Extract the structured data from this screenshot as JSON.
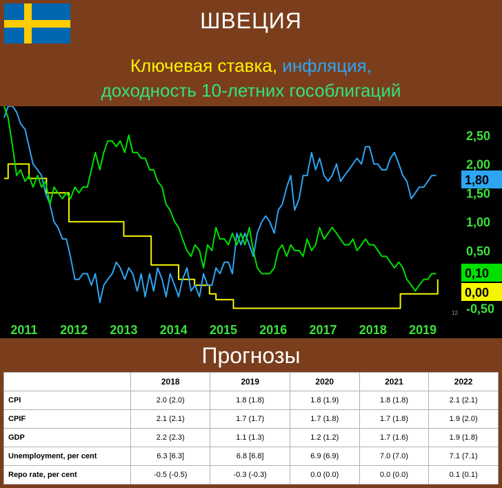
{
  "header": {
    "country": "ШВЕЦИЯ",
    "title_parts": [
      {
        "text": "Ключевая ставка,",
        "color": "#fff200"
      },
      {
        "text": " инфляция,",
        "color": "#2fa5f2"
      }
    ],
    "title_line2": "доходность 10-летних гособлигаций"
  },
  "chart_data": {
    "type": "line",
    "x_tick_labels": [
      "2011",
      "2012",
      "2013",
      "2014",
      "2015",
      "2016",
      "2017",
      "2018",
      "2019"
    ],
    "y_tick_labels": [
      "2,50",
      "2,00",
      "1,50",
      "1,00",
      "0,50",
      "-0,50"
    ],
    "ylim": [
      -0.6,
      3.0
    ],
    "xlim": [
      2011.0,
      2019.8
    ],
    "end_value_labels": [
      {
        "text": "1,80",
        "value": 1.8,
        "series": "inflation",
        "color": "#2fa5f2"
      },
      {
        "text": "0,10",
        "value": 0.1,
        "series": "yield",
        "color": "#00e000"
      },
      {
        "text": "0,00",
        "value": 0.0,
        "series": "repo",
        "color": "#f5f500"
      }
    ],
    "series": [
      {
        "key": "repo",
        "color": "#f5f500",
        "x": [
          2011.0,
          2011.08,
          2011.08,
          2011.5,
          2011.5,
          2011.85,
          2011.85,
          2012.3,
          2012.3,
          2013.4,
          2013.4,
          2013.95,
          2013.95,
          2014.5,
          2014.5,
          2014.82,
          2014.82,
          2015.12,
          2015.12,
          2015.25,
          2015.25,
          2015.6,
          2015.6,
          2015.75,
          2015.75,
          2018.95,
          2018.95,
          2019.7,
          2019.7
        ],
        "values": [
          1.75,
          1.75,
          2.0,
          2.0,
          1.75,
          1.75,
          1.5,
          1.5,
          1.0,
          1.0,
          0.75,
          0.75,
          0.25,
          0.25,
          0.0,
          0.0,
          -0.1,
          -0.1,
          -0.25,
          -0.25,
          -0.35,
          -0.35,
          -0.5,
          -0.5,
          -0.5,
          -0.5,
          -0.25,
          -0.25,
          0.0
        ]
      },
      {
        "key": "inflation",
        "color": "#2fa5f2",
        "x": [
          2011.0,
          2011.08,
          2011.17,
          2011.25,
          2011.33,
          2011.42,
          2011.5,
          2011.58,
          2011.67,
          2011.75,
          2011.83,
          2011.92,
          2012.0,
          2012.08,
          2012.17,
          2012.25,
          2012.33,
          2012.42,
          2012.5,
          2012.58,
          2012.67,
          2012.75,
          2012.83,
          2012.92,
          2013.0,
          2013.08,
          2013.17,
          2013.25,
          2013.33,
          2013.42,
          2013.5,
          2013.58,
          2013.67,
          2013.75,
          2013.83,
          2013.92,
          2014.0,
          2014.08,
          2014.17,
          2014.25,
          2014.33,
          2014.42,
          2014.5,
          2014.58,
          2014.67,
          2014.75,
          2014.83,
          2014.92,
          2015.0,
          2015.08,
          2015.17,
          2015.25,
          2015.33,
          2015.42,
          2015.5,
          2015.58,
          2015.67,
          2015.75,
          2015.83,
          2015.92,
          2016.0,
          2016.08,
          2016.17,
          2016.25,
          2016.33,
          2016.42,
          2016.5,
          2016.58,
          2016.67,
          2016.75,
          2016.83,
          2016.92,
          2017.0,
          2017.08,
          2017.17,
          2017.25,
          2017.33,
          2017.42,
          2017.5,
          2017.58,
          2017.67,
          2017.75,
          2017.83,
          2017.92,
          2018.0,
          2018.08,
          2018.17,
          2018.25,
          2018.33,
          2018.42,
          2018.5,
          2018.58,
          2018.67,
          2018.75,
          2018.83,
          2018.92,
          2019.0,
          2019.08,
          2019.17,
          2019.25,
          2019.33,
          2019.42,
          2019.5,
          2019.58,
          2019.67
        ],
        "values": [
          2.8,
          3.0,
          3.0,
          2.9,
          2.7,
          2.6,
          2.3,
          2.0,
          1.9,
          1.8,
          1.5,
          1.3,
          1.0,
          0.9,
          0.7,
          0.7,
          0.4,
          0.0,
          0.0,
          0.1,
          0.1,
          -0.1,
          0.1,
          -0.4,
          -0.1,
          0.0,
          0.1,
          0.3,
          0.2,
          0.0,
          0.2,
          0.1,
          -0.2,
          0.1,
          -0.3,
          0.1,
          -0.2,
          0.2,
          0.0,
          -0.3,
          0.1,
          -0.1,
          -0.3,
          0.0,
          0.2,
          -0.2,
          -0.1,
          -0.3,
          0.1,
          -0.1,
          -0.1,
          0.2,
          0.1,
          0.3,
          0.3,
          0.1,
          0.8,
          0.6,
          0.8,
          0.6,
          0.4,
          0.8,
          1.0,
          1.1,
          1.0,
          0.8,
          1.2,
          1.3,
          1.6,
          1.8,
          1.2,
          1.4,
          1.8,
          1.8,
          2.2,
          1.9,
          2.1,
          1.8,
          1.7,
          1.8,
          2.0,
          1.7,
          1.8,
          1.9,
          2.0,
          2.1,
          2.0,
          2.3,
          2.3,
          2.0,
          2.0,
          1.9,
          1.9,
          2.1,
          2.2,
          2.0,
          1.8,
          1.7,
          1.4,
          1.5,
          1.6,
          1.6,
          1.7,
          1.8,
          1.8
        ]
      },
      {
        "key": "yield",
        "color": "#00e000",
        "x": [
          2011.0,
          2011.08,
          2011.17,
          2011.25,
          2011.33,
          2011.42,
          2011.5,
          2011.58,
          2011.67,
          2011.75,
          2011.83,
          2011.92,
          2012.0,
          2012.08,
          2012.17,
          2012.25,
          2012.33,
          2012.42,
          2012.5,
          2012.58,
          2012.67,
          2012.75,
          2012.83,
          2012.92,
          2013.0,
          2013.08,
          2013.17,
          2013.25,
          2013.33,
          2013.42,
          2013.5,
          2013.58,
          2013.67,
          2013.75,
          2013.83,
          2013.92,
          2014.0,
          2014.08,
          2014.17,
          2014.25,
          2014.33,
          2014.42,
          2014.5,
          2014.58,
          2014.67,
          2014.75,
          2014.83,
          2014.92,
          2015.0,
          2015.08,
          2015.17,
          2015.25,
          2015.33,
          2015.42,
          2015.5,
          2015.58,
          2015.67,
          2015.75,
          2015.83,
          2015.92,
          2016.0,
          2016.08,
          2016.17,
          2016.25,
          2016.33,
          2016.42,
          2016.5,
          2016.58,
          2016.67,
          2016.75,
          2016.83,
          2016.92,
          2017.0,
          2017.08,
          2017.17,
          2017.25,
          2017.33,
          2017.42,
          2017.5,
          2017.58,
          2017.67,
          2017.75,
          2017.83,
          2017.92,
          2018.0,
          2018.08,
          2018.17,
          2018.25,
          2018.33,
          2018.42,
          2018.5,
          2018.58,
          2018.67,
          2018.75,
          2018.83,
          2018.92,
          2019.0,
          2019.08,
          2019.17,
          2019.25,
          2019.33,
          2019.42,
          2019.5,
          2019.58,
          2019.67
        ],
        "values": [
          3.0,
          2.8,
          2.3,
          1.8,
          1.9,
          1.7,
          1.8,
          1.6,
          1.8,
          1.6,
          1.7,
          1.3,
          1.6,
          1.5,
          1.4,
          1.5,
          1.4,
          1.6,
          1.5,
          1.6,
          1.6,
          1.9,
          2.2,
          1.9,
          2.2,
          2.4,
          2.4,
          2.3,
          2.4,
          2.2,
          2.5,
          2.2,
          2.2,
          2.1,
          2.1,
          1.9,
          1.9,
          1.7,
          1.6,
          1.3,
          1.2,
          1.0,
          0.9,
          0.7,
          0.5,
          0.4,
          0.6,
          0.5,
          0.2,
          0.6,
          0.5,
          0.9,
          0.7,
          0.7,
          0.6,
          0.8,
          0.6,
          0.8,
          0.6,
          0.9,
          0.5,
          0.2,
          0.1,
          0.1,
          0.1,
          0.2,
          0.5,
          0.6,
          0.4,
          0.6,
          0.5,
          0.5,
          0.4,
          0.7,
          0.5,
          0.6,
          0.9,
          0.7,
          0.8,
          0.9,
          0.8,
          0.7,
          0.6,
          0.6,
          0.7,
          0.5,
          0.6,
          0.7,
          0.6,
          0.6,
          0.5,
          0.4,
          0.4,
          0.3,
          0.2,
          0.3,
          0.2,
          0.0,
          -0.1,
          -0.2,
          -0.1,
          0.0,
          0.0,
          0.1,
          0.1
        ]
      }
    ]
  },
  "chart_footer": {
    "footnote": "12"
  },
  "forecast": {
    "heading": "Прогнозы",
    "header": [
      "",
      "2018",
      "2019",
      "2020",
      "2021",
      "2022"
    ],
    "rows": [
      {
        "label": "CPI",
        "cells": [
          "2.0 (2.0)",
          "1.8 (1.8)",
          "1.8 (1.9)",
          "1.8 (1.8)",
          "2.1 (2.1)"
        ]
      },
      {
        "label": "CPIF",
        "cells": [
          "2.1 (2.1)",
          "1.7 (1.7)",
          "1.7 (1.8)",
          "1.7 (1.8)",
          "1.9 (2.0)"
        ]
      },
      {
        "label": "GDP",
        "cells": [
          "2.2 (2.3)",
          "1.1 (1.3)",
          "1.2 (1.2)",
          "1.7 (1.6)",
          "1.9 (1.8)"
        ]
      },
      {
        "label": "Unemployment, per cent",
        "cells": [
          "6.3 [6.3]",
          "6.8 [6.8]",
          "6.9 (6.9)",
          "7.0 (7.0)",
          "7.1 (7.1)"
        ]
      },
      {
        "label": "Repo rate, per cent",
        "cells": [
          "-0.5 (-0.5)",
          "-0.3 (-0.3)",
          "0.0 (0.0)",
          "0.0 (0.0)",
          "0.1 (0.1)"
        ]
      }
    ]
  }
}
